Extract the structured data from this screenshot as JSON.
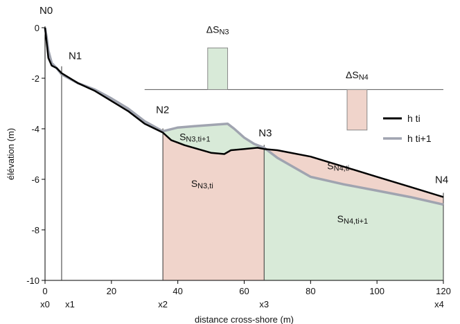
{
  "chart_data": {
    "type": "line",
    "xlabel": "distance cross-shore (m)",
    "ylabel": "élévation (m)",
    "xlim": [
      0,
      120
    ],
    "ylim": [
      -10,
      0
    ],
    "x_ticks": [
      0,
      20,
      40,
      60,
      80,
      100,
      120
    ],
    "y_ticks": [
      0,
      -2,
      -4,
      -6,
      -8,
      -10
    ],
    "x_node_ticks": [
      {
        "label": "x0",
        "x": 0
      },
      {
        "label": "x1",
        "x": 5
      },
      {
        "label": "x2",
        "x": 35.5
      },
      {
        "label": "x3",
        "x": 66
      },
      {
        "label": "x4",
        "x": 120
      }
    ],
    "nodes": [
      {
        "label": "N0",
        "x": 0
      },
      {
        "label": "N1",
        "x": 5
      },
      {
        "label": "N2",
        "x": 35.5
      },
      {
        "label": "N3",
        "x": 66
      },
      {
        "label": "N4",
        "x": 120
      }
    ],
    "series": [
      {
        "name": "h ti",
        "color": "#000000",
        "x": [
          0,
          0.5,
          1,
          2,
          3.5,
          5,
          10,
          15,
          20,
          25,
          30,
          35.5,
          38,
          42,
          46,
          50,
          54,
          56,
          60,
          64,
          66,
          70,
          80,
          90,
          100,
          110,
          120
        ],
        "y": [
          0,
          -0.6,
          -1.2,
          -1.5,
          -1.6,
          -1.8,
          -2.2,
          -2.5,
          -2.9,
          -3.3,
          -3.8,
          -4.15,
          -4.45,
          -4.65,
          -4.8,
          -4.95,
          -5.0,
          -4.85,
          -4.8,
          -4.75,
          -4.8,
          -4.85,
          -5.1,
          -5.5,
          -5.9,
          -6.3,
          -6.7
        ]
      },
      {
        "name": "h ti+1",
        "color": "#a0a4b0",
        "x": [
          0,
          0.5,
          1,
          2,
          3.5,
          5,
          10,
          15,
          20,
          25,
          30,
          35.5,
          40,
          45,
          50,
          55,
          57,
          60,
          63,
          66,
          70,
          80,
          90,
          100,
          110,
          120
        ],
        "y": [
          0,
          -0.4,
          -0.9,
          -1.4,
          -1.6,
          -1.85,
          -2.2,
          -2.45,
          -2.8,
          -3.2,
          -3.7,
          -4.1,
          -3.95,
          -3.9,
          -3.85,
          -3.8,
          -4.0,
          -4.35,
          -4.6,
          -4.75,
          -5.15,
          -5.9,
          -6.2,
          -6.45,
          -6.7,
          -7.0
        ]
      }
    ],
    "volume_bars": {
      "baseline_y": -2.45,
      "baseline_x_range": [
        30,
        120
      ],
      "bars": [
        {
          "label": "ΔSN3",
          "x_range": [
            49,
            55
          ],
          "top_y": -0.8,
          "color": "#d8ead8"
        },
        {
          "label": "ΔSN4",
          "x_range": [
            91,
            97
          ],
          "top_y": -2.45,
          "bottom_y": -4.05,
          "color": "#f0d4cb"
        }
      ]
    },
    "areas": [
      {
        "label": "SN3,ti+1",
        "color": "#d8ead8"
      },
      {
        "label": "SN3,ti",
        "color": "#f0d4cb"
      },
      {
        "label": "SN4,ti",
        "color": "#f0d4cb"
      },
      {
        "label": "SN4,ti+1",
        "color": "#d8ead8"
      }
    ],
    "legend": {
      "placement": "right"
    },
    "grid": false
  }
}
